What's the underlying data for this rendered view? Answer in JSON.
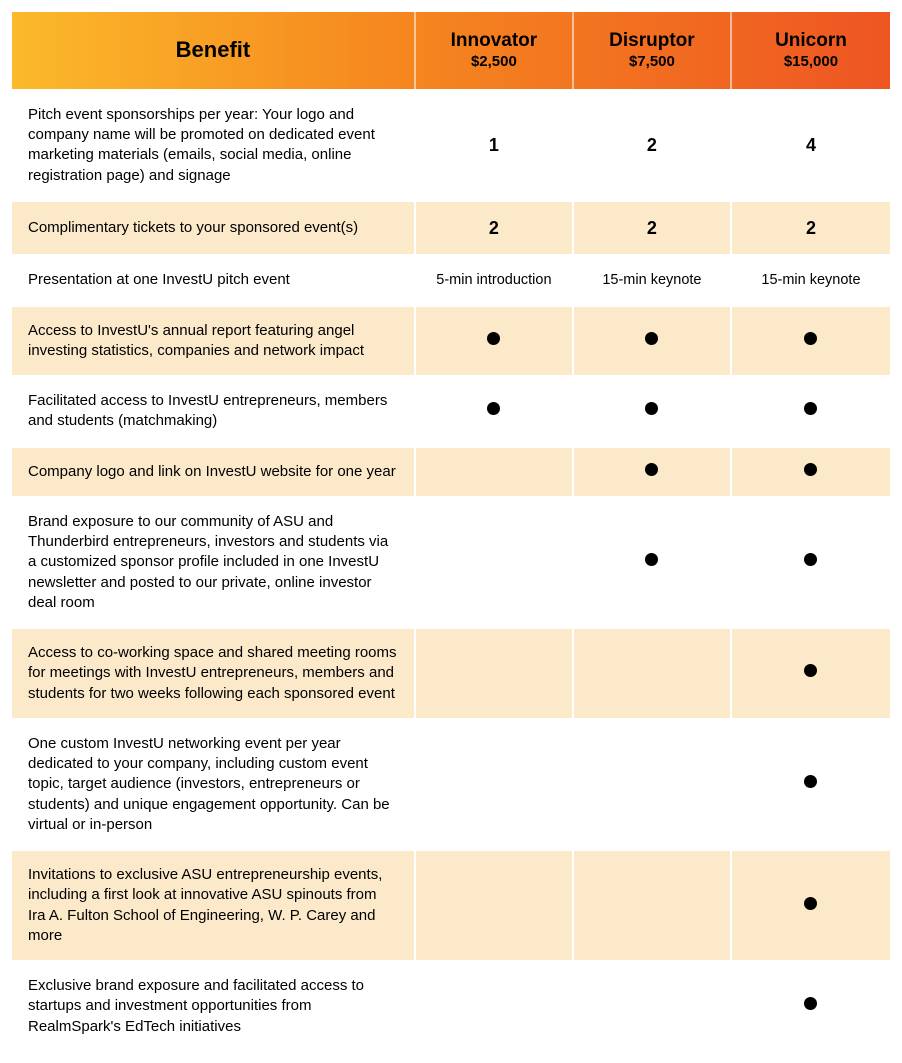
{
  "colors": {
    "header_gradient_start": "#fbb92b",
    "header_gradient_mid": "#f68b1f",
    "header_gradient_end": "#ee5522",
    "row_odd_bg": "#fbe9ca",
    "row_even_bg": "#ffffff",
    "cell_border": "#ffffff",
    "text": "#000000",
    "dot": "#000000"
  },
  "typography": {
    "header_benefit_fontsize": 22,
    "tier_name_fontsize": 19,
    "tier_price_fontsize": 15,
    "body_fontsize": 15,
    "bold_value_fontsize": 18
  },
  "layout": {
    "benefit_col_width_pct": 46,
    "tier_col_width_pct": 18
  },
  "header": {
    "benefit_label": "Benefit",
    "tiers": [
      {
        "name": "Innovator",
        "price": "$2,500"
      },
      {
        "name": "Disruptor",
        "price": "$7,500"
      },
      {
        "name": "Unicorn",
        "price": "$15,000"
      }
    ]
  },
  "rows": [
    {
      "benefit": "Pitch event sponsorships per year: Your logo and company name will be promoted on dedicated event marketing materials (emails, social media, online registration page) and signage",
      "values": [
        {
          "type": "bold",
          "text": "1"
        },
        {
          "type": "bold",
          "text": "2"
        },
        {
          "type": "bold",
          "text": "4"
        }
      ]
    },
    {
      "benefit": "Complimentary tickets to your sponsored event(s)",
      "values": [
        {
          "type": "bold",
          "text": "2"
        },
        {
          "type": "bold",
          "text": "2"
        },
        {
          "type": "bold",
          "text": "2"
        }
      ]
    },
    {
      "benefit": "Presentation at one InvestU pitch event",
      "values": [
        {
          "type": "text",
          "text": "5-min introduction"
        },
        {
          "type": "text",
          "text": "15-min keynote"
        },
        {
          "type": "text",
          "text": "15-min keynote"
        }
      ]
    },
    {
      "benefit": "Access to InvestU's annual report featuring angel investing statistics, companies and network impact",
      "values": [
        {
          "type": "dot"
        },
        {
          "type": "dot"
        },
        {
          "type": "dot"
        }
      ]
    },
    {
      "benefit": "Facilitated access to InvestU entrepreneurs, members and students (matchmaking)",
      "values": [
        {
          "type": "dot"
        },
        {
          "type": "dot"
        },
        {
          "type": "dot"
        }
      ]
    },
    {
      "benefit": "Company logo and link on InvestU website for one year",
      "values": [
        {
          "type": "empty"
        },
        {
          "type": "dot"
        },
        {
          "type": "dot"
        }
      ]
    },
    {
      "benefit": "Brand exposure to our community of ASU and Thunderbird entrepreneurs, investors and students via a customized sponsor profile included in one InvestU newsletter and posted to our private, online investor deal room",
      "values": [
        {
          "type": "empty"
        },
        {
          "type": "dot"
        },
        {
          "type": "dot"
        }
      ]
    },
    {
      "benefit": "Access to co-working space and shared meeting rooms for meetings with InvestU entrepreneurs, members and students for two weeks following each sponsored event",
      "values": [
        {
          "type": "empty"
        },
        {
          "type": "empty"
        },
        {
          "type": "dot"
        }
      ]
    },
    {
      "benefit": "One custom InvestU networking event per year dedicated to your company, including custom event topic, target audience (investors, entrepreneurs or students) and unique engagement opportunity. Can be virtual or in-person",
      "values": [
        {
          "type": "empty"
        },
        {
          "type": "empty"
        },
        {
          "type": "dot"
        }
      ]
    },
    {
      "benefit": "Invitations to exclusive ASU entrepreneurship events, including a first look at innovative ASU spinouts from Ira A. Fulton School of Engineering, W. P. Carey and more",
      "values": [
        {
          "type": "empty"
        },
        {
          "type": "empty"
        },
        {
          "type": "dot"
        }
      ]
    },
    {
      "benefit": "Exclusive brand exposure and facilitated access to startups and investment opportunities from RealmSpark's EdTech initiatives",
      "values": [
        {
          "type": "empty"
        },
        {
          "type": "empty"
        },
        {
          "type": "dot"
        }
      ]
    }
  ]
}
